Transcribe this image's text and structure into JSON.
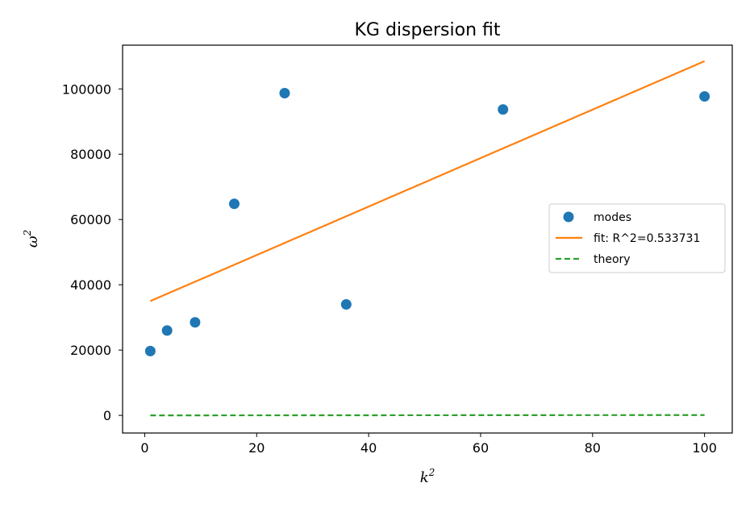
{
  "chart_data": {
    "type": "scatter",
    "title": "KG dispersion fit",
    "xlabel": "k",
    "xlabel_sup": "2",
    "ylabel": "ω",
    "ylabel_sup": "2",
    "xlim": [
      -3.95,
      104.95
    ],
    "ylim": [
      -5400,
      113400
    ],
    "xticks": [
      0,
      20,
      40,
      60,
      80,
      100
    ],
    "yticks": [
      0,
      20000,
      40000,
      60000,
      80000,
      100000
    ],
    "grid": false,
    "legend_position": "center-right",
    "series": [
      {
        "name": "modes",
        "kind": "scatter",
        "color": "#1f77b4",
        "x": [
          1,
          4,
          9,
          16,
          25,
          36,
          64,
          100
        ],
        "y": [
          19700,
          26000,
          28500,
          64800,
          98700,
          34000,
          93700,
          97700
        ]
      },
      {
        "name": "fit: R^2=0.533731",
        "kind": "line",
        "color": "#ff7f0e",
        "x": [
          1,
          100
        ],
        "y": [
          35000,
          108500
        ]
      },
      {
        "name": "theory",
        "kind": "dashed-line",
        "color": "#2ca02c",
        "x": [
          1,
          100
        ],
        "y": [
          0,
          100
        ]
      }
    ]
  }
}
